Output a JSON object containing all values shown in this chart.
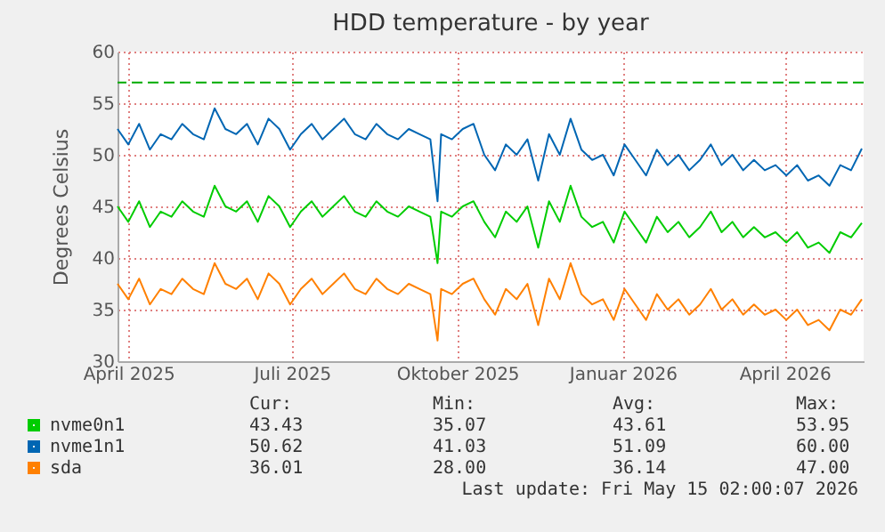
{
  "chart_data": {
    "type": "line",
    "title": "HDD temperature - by year",
    "ylabel": "Degrees Celsius",
    "x": [
      "2025-03-26",
      "2025-04-01",
      "2025-04-07",
      "2025-04-13",
      "2025-04-19",
      "2025-04-25",
      "2025-05-01",
      "2025-05-07",
      "2025-05-13",
      "2025-05-19",
      "2025-05-25",
      "2025-05-31",
      "2025-06-06",
      "2025-06-12",
      "2025-06-18",
      "2025-06-24",
      "2025-06-30",
      "2025-07-06",
      "2025-07-12",
      "2025-07-18",
      "2025-07-24",
      "2025-07-30",
      "2025-08-05",
      "2025-08-11",
      "2025-08-17",
      "2025-08-23",
      "2025-08-29",
      "2025-09-04",
      "2025-09-10",
      "2025-09-16",
      "2025-09-20",
      "2025-09-22",
      "2025-09-28",
      "2025-10-04",
      "2025-10-10",
      "2025-10-16",
      "2025-10-22",
      "2025-10-28",
      "2025-11-03",
      "2025-11-09",
      "2025-11-15",
      "2025-11-21",
      "2025-11-27",
      "2025-12-03",
      "2025-12-09",
      "2025-12-15",
      "2025-12-21",
      "2025-12-27",
      "2026-01-02",
      "2026-01-08",
      "2026-01-14",
      "2026-01-20",
      "2026-01-26",
      "2026-02-01",
      "2026-02-07",
      "2026-02-13",
      "2026-02-19",
      "2026-02-25",
      "2026-03-03",
      "2026-03-09",
      "2026-03-15",
      "2026-03-21",
      "2026-03-27",
      "2026-04-02",
      "2026-04-08",
      "2026-04-14",
      "2026-04-20",
      "2026-04-26",
      "2026-05-02",
      "2026-05-08",
      "2026-05-14"
    ],
    "series": [
      {
        "name": "nvme0n1",
        "color": "#00cc00",
        "values": [
          45,
          43.5,
          45.5,
          43,
          44.5,
          44,
          45.5,
          44.5,
          44,
          47,
          45,
          44.5,
          45.5,
          43.5,
          46,
          45,
          43,
          44.5,
          45.5,
          44,
          45,
          46,
          44.5,
          44,
          45.5,
          44.5,
          44,
          45,
          44.5,
          44,
          39.5,
          44.5,
          44,
          45,
          45.5,
          43.5,
          42,
          44.5,
          43.5,
          45,
          41,
          45.5,
          43.5,
          47,
          44,
          43,
          43.5,
          41.5,
          44.5,
          43,
          41.5,
          44,
          42.5,
          43.5,
          42,
          43,
          44.5,
          42.5,
          43.5,
          42,
          43,
          42,
          42.5,
          41.5,
          42.5,
          41,
          41.5,
          40.5,
          42.5,
          42,
          43.4
        ]
      },
      {
        "name": "nvme1n1",
        "color": "#0066b3",
        "values": [
          52.5,
          51,
          53,
          50.5,
          52,
          51.5,
          53,
          52,
          51.5,
          54.5,
          52.5,
          52,
          53,
          51,
          53.5,
          52.5,
          50.5,
          52,
          53,
          51.5,
          52.5,
          53.5,
          52,
          51.5,
          53,
          52,
          51.5,
          52.5,
          52,
          51.5,
          45.5,
          52,
          51.5,
          52.5,
          53,
          50,
          48.5,
          51,
          50,
          51.5,
          47.5,
          52,
          50,
          53.5,
          50.5,
          49.5,
          50,
          48,
          51,
          49.5,
          48,
          50.5,
          49,
          50,
          48.5,
          49.5,
          51,
          49,
          50,
          48.5,
          49.5,
          48.5,
          49,
          48,
          49,
          47.5,
          48,
          47,
          49,
          48.5,
          50.6
        ]
      },
      {
        "name": "sda",
        "color": "#ff8000",
        "values": [
          37.5,
          36,
          38,
          35.5,
          37,
          36.5,
          38,
          37,
          36.5,
          39.5,
          37.5,
          37,
          38,
          36,
          38.5,
          37.5,
          35.5,
          37,
          38,
          36.5,
          37.5,
          38.5,
          37,
          36.5,
          38,
          37,
          36.5,
          37.5,
          37,
          36.5,
          32,
          37,
          36.5,
          37.5,
          38,
          36,
          34.5,
          37,
          36,
          37.5,
          33.5,
          38,
          36,
          39.5,
          36.5,
          35.5,
          36,
          34,
          37,
          35.5,
          34,
          36.5,
          35,
          36,
          34.5,
          35.5,
          37,
          35,
          36,
          34.5,
          35.5,
          34.5,
          35,
          34,
          35,
          33.5,
          34,
          33,
          35,
          34.5,
          36
        ]
      }
    ],
    "xlim": [
      "2025-03-26",
      "2026-05-15"
    ],
    "xticks": [
      {
        "value": "2025-04-01",
        "label": "April 2025"
      },
      {
        "value": "2025-07-01",
        "label": "Juli 2025"
      },
      {
        "value": "2025-10-01",
        "label": "Oktober 2025"
      },
      {
        "value": "2026-01-01",
        "label": "Januar 2026"
      },
      {
        "value": "2026-04-01",
        "label": "April 2026"
      }
    ],
    "ylim": [
      30,
      60
    ],
    "yticks": [
      30,
      35,
      40,
      45,
      50,
      55,
      60
    ],
    "ref_lines": [
      {
        "axis": "y",
        "value": 57,
        "color": "#00aa00",
        "line_style": "dashed"
      }
    ],
    "grid": true,
    "legend": "bottom left",
    "line_style": "solid",
    "marker": "none",
    "annotations": [
      "Cur:",
      "Min:",
      "Avg:",
      "Max:",
      "43.43",
      "35.07",
      "43.61",
      "53.95",
      "50.62",
      "41.03",
      "51.09",
      "60.00",
      "36.01",
      "28.00",
      "36.14",
      "47.00",
      "Last update: Fri May 15 02:00:07 2026"
    ]
  }
}
